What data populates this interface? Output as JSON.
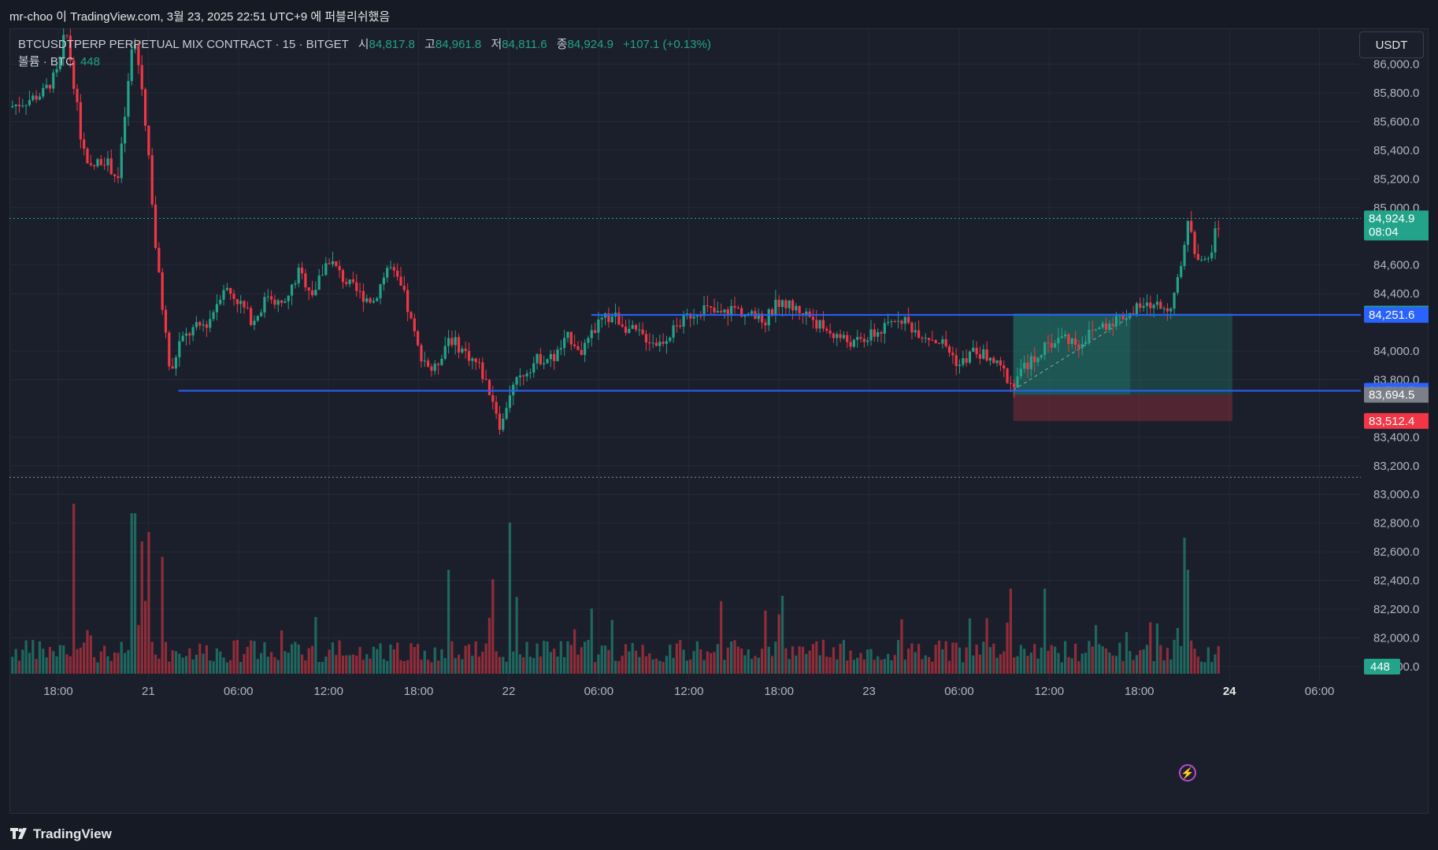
{
  "header": {
    "caption": "mr-choo 이 TradingView.com, 3월 23, 2025 22:51 UTC+9 에 퍼블리쉬했음"
  },
  "legend": {
    "symbol": "BTCUSDTPERP PERPETUAL MIX CONTRACT · 15 · BITGET",
    "open_label": "시",
    "open": "84,817.8",
    "high_label": "고",
    "high": "84,961.8",
    "low_label": "저",
    "low": "84,811.6",
    "close_label": "종",
    "close": "84,924.9",
    "change": "+107.1 (+0.13%)",
    "volume_label": "볼륨 · BTC",
    "volume": "448"
  },
  "currency_button": "USDT",
  "footer": {
    "brand": "TradingView"
  },
  "colors": {
    "up": "#22a38a",
    "down": "#f23645",
    "line": "#2962ff",
    "bg": "#1b1f2b"
  },
  "chart_data": {
    "type": "candlestick",
    "symbol": "BTCUSDTPERP",
    "interval": "15",
    "exchange": "BITGET",
    "y_ticks": [
      81800,
      82000,
      82200,
      82400,
      82600,
      82800,
      83000,
      83200,
      83400,
      83800,
      84000,
      84400,
      84600,
      85000,
      85200,
      85400,
      85600,
      85800,
      86000
    ],
    "y_tick_labels": [
      "81,800.0",
      "82,000.0",
      "82,200.0",
      "82,400.0",
      "82,600.0",
      "82,800.0",
      "83,000.0",
      "83,200.0",
      "83,400.0",
      "83,800.0",
      "84,000.0",
      "84,400.0",
      "84,600.0",
      "85,000.0",
      "85,200.0",
      "85,400.0",
      "85,600.0",
      "85,800.0",
      "86,000.0"
    ],
    "ylim": [
      81750,
      86250
    ],
    "x_ticks": [
      {
        "label": "18:00",
        "t": 0
      },
      {
        "label": "21",
        "t": 6
      },
      {
        "label": "06:00",
        "t": 12
      },
      {
        "label": "12:00",
        "t": 18
      },
      {
        "label": "18:00",
        "t": 24
      },
      {
        "label": "22",
        "t": 30
      },
      {
        "label": "06:00",
        "t": 36
      },
      {
        "label": "12:00",
        "t": 42
      },
      {
        "label": "18:00",
        "t": 48
      },
      {
        "label": "23",
        "t": 54
      },
      {
        "label": "06:00",
        "t": 60
      },
      {
        "label": "12:00",
        "t": 66
      },
      {
        "label": "18:00",
        "t": 72
      },
      {
        "label": "24",
        "t": 78
      },
      {
        "label": "06:00",
        "t": 84
      }
    ],
    "xlim": [
      -3.25,
      86.75
    ],
    "price_path": [
      [
        -3.25,
        85700
      ],
      [
        -2,
        85750
      ],
      [
        -1,
        85800
      ],
      [
        0,
        85950
      ],
      [
        0.5,
        86250
      ],
      [
        1,
        85900
      ],
      [
        1.5,
        85500
      ],
      [
        2,
        85250
      ],
      [
        3,
        85350
      ],
      [
        4,
        85200
      ],
      [
        5,
        86200
      ],
      [
        5.5,
        85900
      ],
      [
        6,
        85400
      ],
      [
        6.5,
        84700
      ],
      [
        7,
        84250
      ],
      [
        7.5,
        83800
      ],
      [
        8,
        84050
      ],
      [
        9,
        84150
      ],
      [
        10,
        84200
      ],
      [
        11,
        84450
      ],
      [
        12,
        84350
      ],
      [
        13,
        84200
      ],
      [
        14,
        84400
      ],
      [
        15,
        84300
      ],
      [
        16,
        84550
      ],
      [
        17,
        84400
      ],
      [
        18,
        84650
      ],
      [
        19,
        84500
      ],
      [
        20,
        84400
      ],
      [
        21,
        84350
      ],
      [
        22,
        84600
      ],
      [
        23,
        84400
      ],
      [
        24,
        84000
      ],
      [
        25,
        83850
      ],
      [
        26,
        84100
      ],
      [
        27,
        84000
      ],
      [
        28,
        83900
      ],
      [
        29,
        83650
      ],
      [
        29.5,
        83450
      ],
      [
        30,
        83700
      ],
      [
        31,
        83850
      ],
      [
        32,
        83950
      ],
      [
        33,
        83950
      ],
      [
        34,
        84100
      ],
      [
        35,
        84000
      ],
      [
        36,
        84200
      ],
      [
        37,
        84250
      ],
      [
        38,
        84150
      ],
      [
        39,
        84100
      ],
      [
        40,
        84050
      ],
      [
        41,
        84150
      ],
      [
        42,
        84250
      ],
      [
        43,
        84300
      ],
      [
        44,
        84250
      ],
      [
        45,
        84300
      ],
      [
        46,
        84250
      ],
      [
        47,
        84200
      ],
      [
        48,
        84350
      ],
      [
        49,
        84300
      ],
      [
        50,
        84250
      ],
      [
        51,
        84150
      ],
      [
        52,
        84100
      ],
      [
        53,
        84050
      ],
      [
        54,
        84100
      ],
      [
        55,
        84150
      ],
      [
        56,
        84250
      ],
      [
        57,
        84150
      ],
      [
        58,
        84100
      ],
      [
        59,
        84050
      ],
      [
        60,
        83900
      ],
      [
        61,
        84000
      ],
      [
        62,
        83950
      ],
      [
        63,
        83850
      ],
      [
        63.5,
        83760
      ],
      [
        64,
        83850
      ],
      [
        65,
        83950
      ],
      [
        66,
        84050
      ],
      [
        67,
        84100
      ],
      [
        68,
        84050
      ],
      [
        69,
        84150
      ],
      [
        70,
        84200
      ],
      [
        71,
        84250
      ],
      [
        72,
        84300
      ],
      [
        73,
        84320
      ],
      [
        74,
        84300
      ],
      [
        74.5,
        84450
      ],
      [
        75,
        84700
      ],
      [
        75.3,
        84950
      ],
      [
        75.7,
        84700
      ],
      [
        76.5,
        84600
      ],
      [
        77,
        84800
      ],
      [
        77.5,
        84925
      ]
    ],
    "volume": {
      "axis_label": "448",
      "spikes": [
        {
          "t": 1,
          "v": 0.9
        },
        {
          "t": 5,
          "v": 0.85
        },
        {
          "t": 6,
          "v": 0.75
        },
        {
          "t": 30,
          "v": 0.8
        },
        {
          "t": 26,
          "v": 0.55
        },
        {
          "t": 29,
          "v": 0.5
        },
        {
          "t": 63.5,
          "v": 0.45
        },
        {
          "t": 75,
          "v": 0.72
        },
        {
          "t": 75.3,
          "v": 0.55
        },
        {
          "t": 7,
          "v": 0.6
        },
        {
          "t": 5.5,
          "v": 0.7
        }
      ]
    },
    "horizontal_lines": [
      {
        "price": 84251.6,
        "label": "84,251.6",
        "from_t": 35.5
      },
      {
        "price": 83722.7,
        "label": "83,722.7",
        "from_t": 8
      }
    ],
    "position": {
      "type": "long",
      "entry": 83694.5,
      "entry_label": "83,694.5",
      "target": 84260.8,
      "target_label": "84,260.8",
      "stop": 83512.4,
      "stop_label": "83,512.4",
      "from_t": 63.6,
      "to_t": 78.2,
      "filled_to_t": 71.4
    },
    "dotted_levels": [
      {
        "price": 84924.9
      },
      {
        "price": 83120
      }
    ],
    "last_price": {
      "label": "84,924.9",
      "countdown": "08:04"
    }
  }
}
